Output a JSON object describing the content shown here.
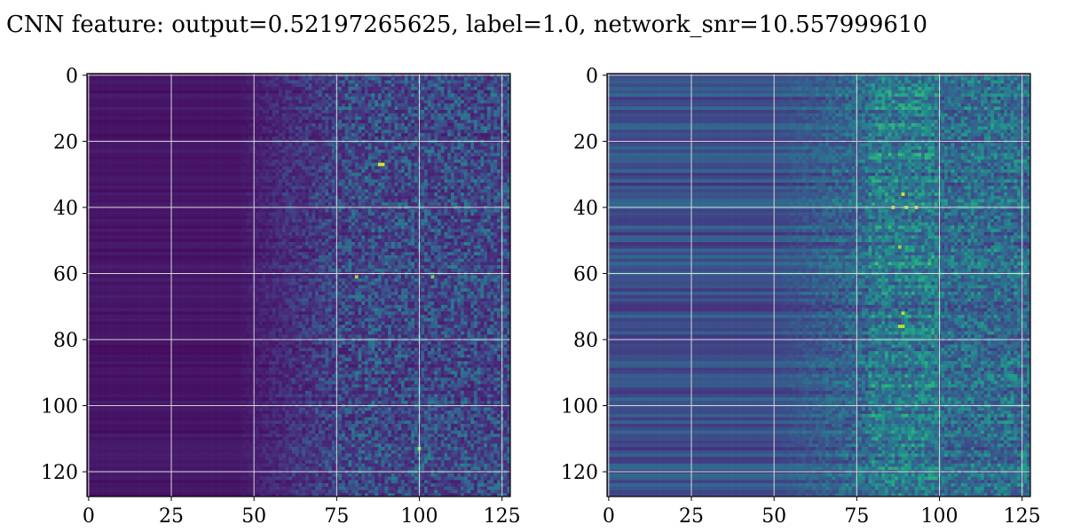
{
  "title": "CNN feature: output=0.52197265625, label=1.0, network_snr=10.557999610",
  "colormap": [
    "#440154",
    "#482878",
    "#3e4a89",
    "#31688e",
    "#26828e",
    "#1f9e89",
    "#35b779",
    "#6ece58",
    "#b5de2b",
    "#fde725"
  ],
  "chart_data": [
    {
      "type": "heatmap",
      "title": "",
      "xlabel": "",
      "ylabel": "",
      "shape": [
        128,
        128
      ],
      "xlim": [
        -0.5,
        127.5
      ],
      "ylim": [
        127.5,
        -0.5
      ],
      "xticks": [
        0,
        25,
        50,
        75,
        100,
        125
      ],
      "yticks": [
        0,
        20,
        40,
        60,
        80,
        100,
        120
      ],
      "xtick_labels": [
        "0",
        "25",
        "50",
        "75",
        "100",
        "125"
      ],
      "ytick_labels": [
        "0",
        "20",
        "40",
        "60",
        "80",
        "100",
        "120"
      ],
      "grid": true,
      "value_range": [
        0,
        1
      ],
      "description_of_values": "rows uniform low values on columns 0-50, rising noise toward columns 75-127, bright spots near (88,27), (81,61), (100,113)"
    },
    {
      "type": "heatmap",
      "title": "",
      "xlabel": "",
      "ylabel": "",
      "shape": [
        128,
        128
      ],
      "xlim": [
        -0.5,
        127.5
      ],
      "ylim": [
        127.5,
        -0.5
      ],
      "xticks": [
        0,
        25,
        50,
        75,
        100,
        125
      ],
      "yticks": [
        0,
        20,
        40,
        60,
        80,
        100,
        120
      ],
      "xtick_labels": [
        "0",
        "25",
        "50",
        "75",
        "100",
        "125"
      ],
      "ytick_labels": [
        "0",
        "20",
        "40",
        "60",
        "80",
        "100",
        "120"
      ],
      "grid": true,
      "value_range": [
        0,
        1
      ],
      "description_of_values": "horizontal bands across columns 0-70, brighter clustered values near columns 80-100, bright spots near (89,36), (88,40), (89,72), (89,76)"
    }
  ]
}
